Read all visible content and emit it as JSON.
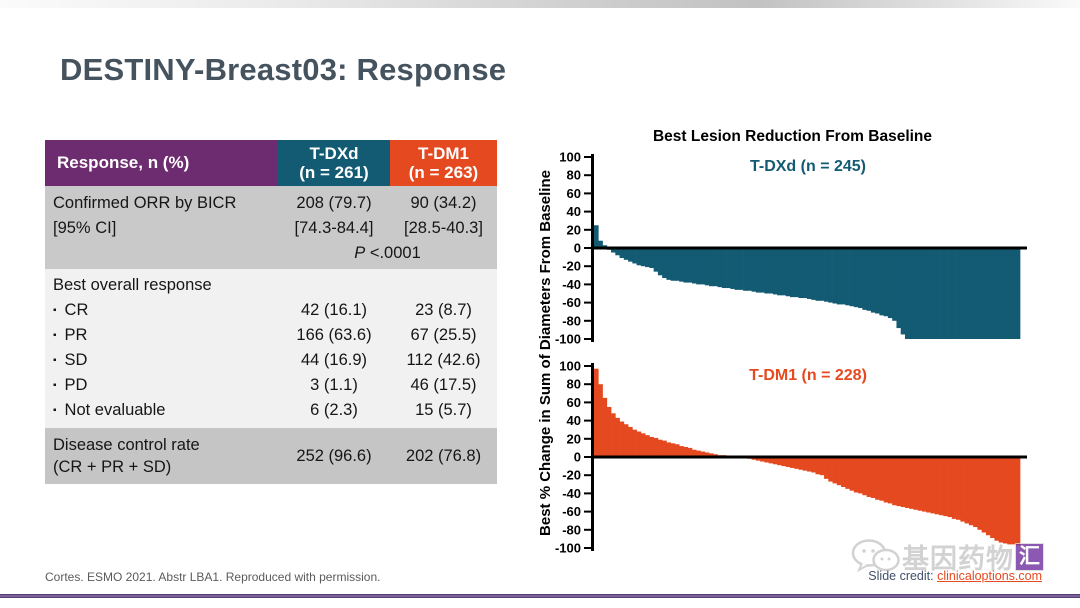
{
  "slide": {
    "title": "DESTINY-Breast03: Response",
    "footer_left": "Cortes. ESMO 2021. Abstr LBA1. Reproduced with permission.",
    "footer_credit_label": "Slide credit: ",
    "footer_credit_link": "clinicaloptions.com",
    "watermark_text": "基因药物",
    "watermark_badge": "汇"
  },
  "colors": {
    "purple": "#6E2C70",
    "teal": "#135A73",
    "orange": "#E5491F",
    "title_slate": "#45535F",
    "row_gray": "#C9C9C9",
    "row_light": "#F1F1F1",
    "accent_purple": "#8766A8"
  },
  "table": {
    "header": {
      "col1": "Response, n (%)",
      "col2_line1": "T-DXd",
      "col2_line2": "(n = 261)",
      "col3_line1": "T-DM1",
      "col3_line2": "(n = 263)"
    },
    "sections": [
      {
        "rows": [
          {
            "label": "Confirmed ORR by BICR",
            "tdxd": "208 (79.7)",
            "tdm1": "90 (34.2)"
          },
          {
            "label": " [95% CI]",
            "tdxd": "[74.3-84.4]",
            "tdm1": "[28.5-40.3]"
          }
        ],
        "pvalue_italic": "P",
        "pvalue_rest": " <.0001"
      },
      {
        "header": "Best overall response",
        "bullet": "▪",
        "rows": [
          {
            "label": "CR",
            "tdxd": "42 (16.1)",
            "tdm1": "23 (8.7)"
          },
          {
            "label": "PR",
            "tdxd": "166 (63.6)",
            "tdm1": "67 (25.5)"
          },
          {
            "label": "SD",
            "tdxd": "44 (16.9)",
            "tdm1": "112 (42.6)"
          },
          {
            "label": "PD",
            "tdxd": "3 (1.1)",
            "tdm1": "46 (17.5)"
          },
          {
            "label": "Not evaluable",
            "tdxd": "6 (2.3)",
            "tdm1": "15 (5.7)"
          }
        ]
      },
      {
        "rows": [
          {
            "label_line1": "Disease control rate",
            "label_line2": "(CR + PR + SD)",
            "tdxd": "252 (96.6)",
            "tdm1": "202 (76.8)"
          }
        ]
      }
    ]
  },
  "chart_data": {
    "type": "bar",
    "subtype": "waterfall",
    "title": "Best Lesion Reduction From Baseline",
    "ylabel": "Best % Change in Sum of Diameters From Baseline",
    "xlabel": "",
    "ylim": [
      -100,
      100
    ],
    "yticks": [
      100,
      80,
      60,
      40,
      20,
      0,
      -20,
      -40,
      -60,
      -80,
      -100
    ],
    "grid": false,
    "legend_position": "none",
    "panels": [
      {
        "name": "T-DXd",
        "label": "T-DXd (n = 245)",
        "n": 245,
        "color": "#135A73",
        "values": [
          25,
          8,
          3,
          -2,
          -5,
          -8,
          -11,
          -13,
          -15,
          -17,
          -19,
          -20,
          -21,
          -22,
          -26,
          -30,
          -33,
          -35,
          -36,
          -36,
          -37,
          -38,
          -38,
          -39,
          -40,
          -40,
          -41,
          -42,
          -42,
          -43,
          -44,
          -44,
          -45,
          -46,
          -46,
          -47,
          -47,
          -48,
          -49,
          -49,
          -50,
          -50,
          -51,
          -52,
          -52,
          -53,
          -54,
          -54,
          -55,
          -55,
          -56,
          -57,
          -58,
          -58,
          -59,
          -60,
          -61,
          -62,
          -62,
          -63,
          -64,
          -65,
          -66,
          -68,
          -69,
          -71,
          -72,
          -74,
          -75,
          -77,
          -80,
          -88,
          -95,
          -100,
          -100,
          -100,
          -100,
          -100,
          -100,
          -100,
          -100,
          -100,
          -100,
          -100,
          -100,
          -100,
          -100,
          -100,
          -100,
          -100,
          -100,
          -100,
          -100,
          -100,
          -100,
          -100,
          -100,
          -100,
          -100,
          -100
        ]
      },
      {
        "name": "T-DM1",
        "label": "T-DM1 (n = 228)",
        "n": 228,
        "color": "#E5491F",
        "values": [
          97,
          80,
          65,
          55,
          48,
          43,
          39,
          36,
          33,
          30,
          28,
          26,
          24,
          22,
          21,
          19,
          18,
          16,
          15,
          14,
          12,
          11,
          10,
          8,
          7,
          6,
          5,
          4,
          3,
          2,
          2,
          1,
          1,
          0,
          0,
          -1,
          -2,
          -3,
          -4,
          -5,
          -6,
          -7,
          -8,
          -9,
          -10,
          -11,
          -12,
          -13,
          -14,
          -15,
          -16,
          -17,
          -19,
          -20,
          -24,
          -27,
          -29,
          -31,
          -33,
          -35,
          -37,
          -39,
          -40,
          -42,
          -44,
          -45,
          -47,
          -48,
          -50,
          -51,
          -53,
          -54,
          -55,
          -56,
          -57,
          -58,
          -59,
          -60,
          -61,
          -62,
          -63,
          -64,
          -65,
          -66,
          -68,
          -69,
          -71,
          -73,
          -75,
          -77,
          -80,
          -83,
          -86,
          -89,
          -92,
          -94,
          -95,
          -96,
          -96,
          -97
        ]
      }
    ]
  }
}
